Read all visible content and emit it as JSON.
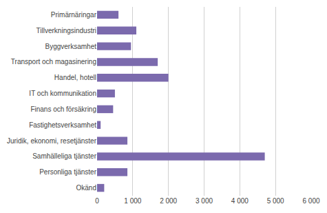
{
  "chart_data": {
    "type": "bar",
    "orientation": "horizontal",
    "categories": [
      "Okänd",
      "Personliga tjänster",
      "Samhälleliga tjänster",
      "Juridik, ekonomi, resetjänster",
      "Fastighetsverksamhet",
      "Finans och försäkring",
      "IT och kommunikation",
      "Handel, hotell",
      "Transport och magasinering",
      "Byggverksamhet",
      "Tillverkningsindustri",
      "Primärnäringar"
    ],
    "values": [
      200,
      850,
      4700,
      850,
      100,
      450,
      500,
      2000,
      1700,
      950,
      1100,
      600
    ],
    "color": "#7B6AAD",
    "xlim": [
      0,
      6000
    ],
    "xticks": [
      0,
      {
        "value": 1000,
        "label": "1 000"
      },
      {
        "value": 2000,
        "label": "2 000"
      },
      {
        "value": 3000,
        "label": "3 000"
      },
      {
        "value": 4000,
        "label": "4 000"
      },
      {
        "value": 5000,
        "label": "5 000"
      },
      {
        "value": 6000,
        "label": "6 000"
      }
    ],
    "grid": true
  }
}
